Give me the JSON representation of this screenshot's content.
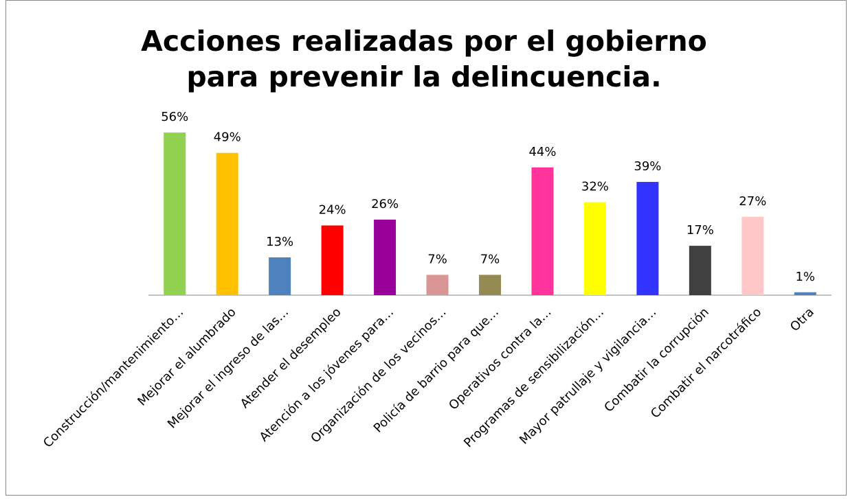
{
  "chart_data": {
    "type": "bar",
    "title": "Acciones realizadas por el gobierno para prevenir la delincuencia.",
    "categories": [
      "Construcción/mantenimiento…",
      "Mejorar el alumbrado",
      "Mejorar el ingreso de las…",
      "Atender el desempleo",
      "Atención a los jóvenes para…",
      "Organización de los vecinos…",
      "Policía de barrio para que…",
      "Operativos contra la…",
      "Programas de sensibilización…",
      "Mayor patrullaje y vigilancia…",
      "Combatir la corrupción",
      "Combatir el narcotráfico",
      "Otra"
    ],
    "values": [
      56,
      49,
      13,
      24,
      26,
      7,
      7,
      44,
      32,
      39,
      17,
      27,
      1
    ],
    "value_labels": [
      "56%",
      "49%",
      "13%",
      "24%",
      "26%",
      "7%",
      "7%",
      "44%",
      "32%",
      "39%",
      "17%",
      "27%",
      "1%"
    ],
    "colors": [
      "#92d050",
      "#ffc000",
      "#4f81bd",
      "#ff0000",
      "#990099",
      "#d99694",
      "#948a54",
      "#ff3399",
      "#ffff00",
      "#3333ff",
      "#404040",
      "#ffc7c7",
      "#4f81bd"
    ]
  }
}
